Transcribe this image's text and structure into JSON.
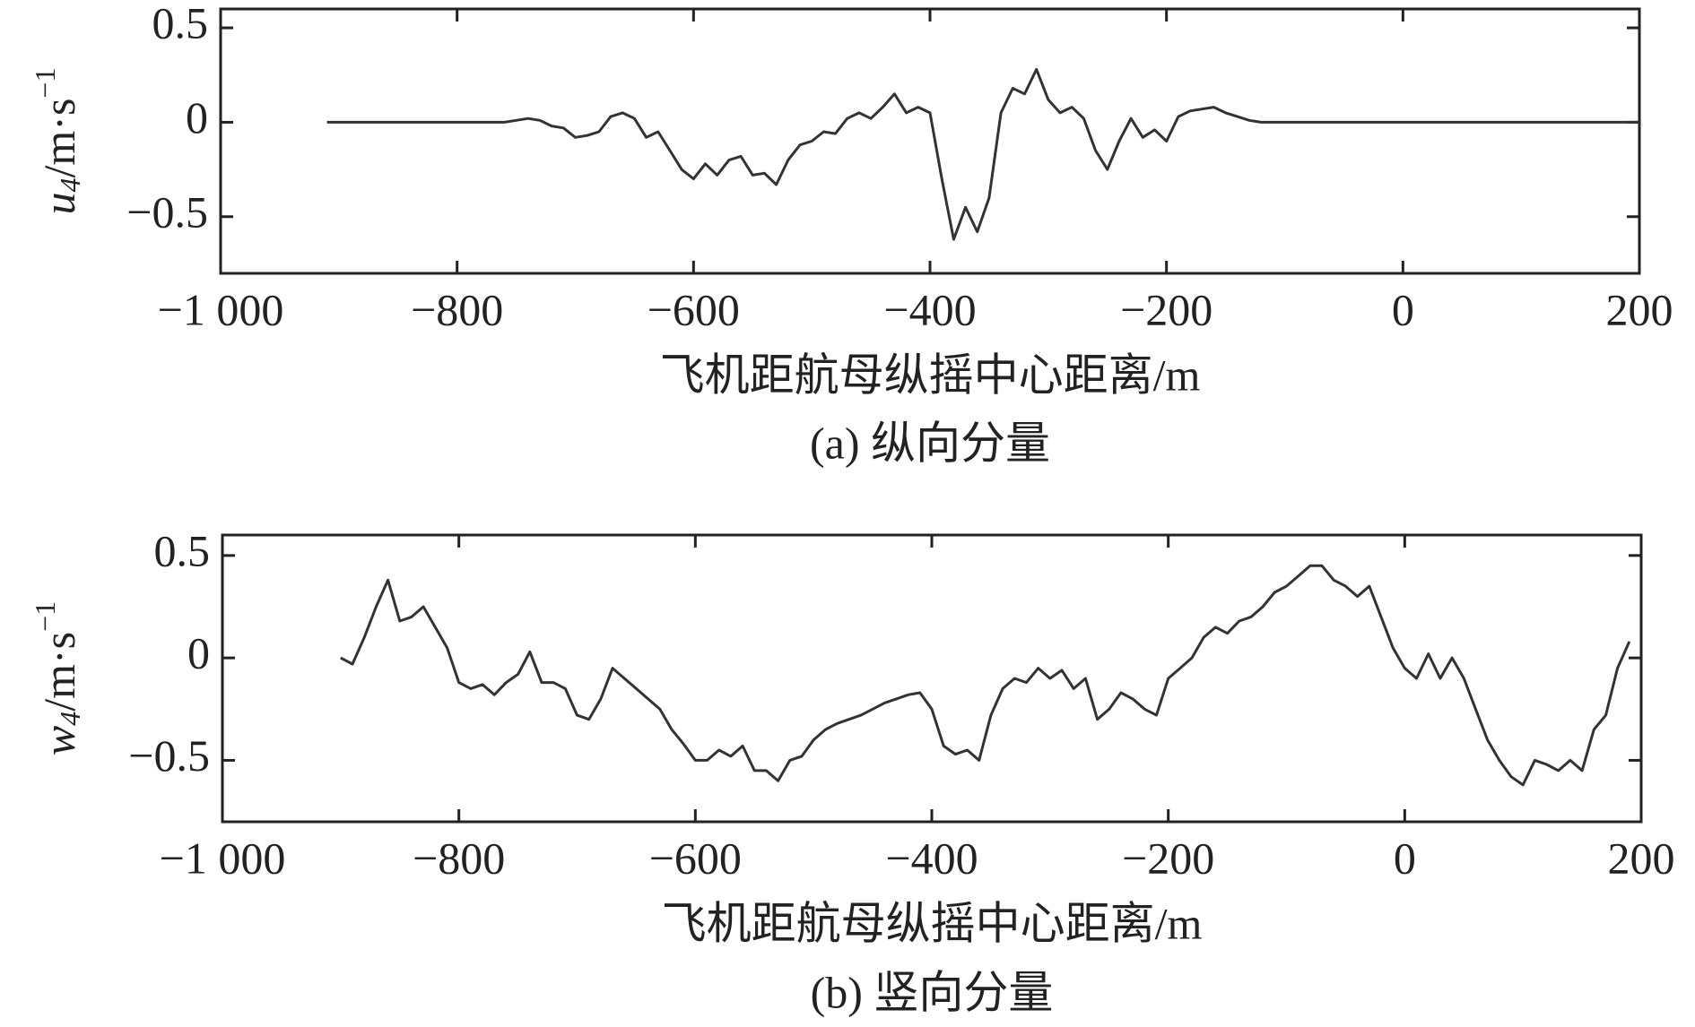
{
  "chart_data": [
    {
      "type": "line",
      "ylabel": {
        "symbol": "u",
        "subscript": "4",
        "unit": "/m·s",
        "exponent": "−1"
      },
      "xlabel": "飞机距航母纵摇中心距离/m",
      "caption": "(a) 纵向分量",
      "xlim": [
        -1000,
        200
      ],
      "ylim": [
        -0.8,
        0.6
      ],
      "xticks": [
        {
          "value": -1000,
          "label": "−1 000"
        },
        {
          "value": -800,
          "label": "−800"
        },
        {
          "value": -600,
          "label": "−600"
        },
        {
          "value": -400,
          "label": "−400"
        },
        {
          "value": -200,
          "label": "−200"
        },
        0,
        200
      ],
      "yticks": [
        {
          "value": -0.5,
          "label": "−0.5"
        },
        0,
        0.5
      ],
      "color": "#333333",
      "x": [
        -910,
        -900,
        -890,
        -880,
        -870,
        -860,
        -850,
        -840,
        -830,
        -820,
        -810,
        -800,
        -790,
        -780,
        -770,
        -760,
        -750,
        -740,
        -730,
        -720,
        -710,
        -700,
        -690,
        -680,
        -670,
        -660,
        -650,
        -640,
        -630,
        -620,
        -610,
        -600,
        -590,
        -580,
        -570,
        -560,
        -550,
        -540,
        -530,
        -520,
        -510,
        -500,
        -490,
        -480,
        -470,
        -460,
        -450,
        -440,
        -430,
        -420,
        -410,
        -400,
        -390,
        -380,
        -370,
        -360,
        -350,
        -340,
        -330,
        -320,
        -310,
        -300,
        -290,
        -280,
        -270,
        -260,
        -250,
        -240,
        -230,
        -220,
        -210,
        -200,
        -190,
        -180,
        -170,
        -160,
        -150,
        -140,
        -130,
        -120,
        -110,
        -100,
        -90,
        -80,
        -70,
        -60,
        -50,
        -40,
        -30,
        -20,
        -10,
        0,
        10,
        20,
        30,
        40,
        50,
        60,
        70,
        80,
        90,
        100,
        110,
        120,
        130,
        140,
        150,
        160,
        170,
        180,
        190,
        200
      ],
      "values": [
        0,
        0,
        0,
        0,
        0,
        0,
        0,
        0,
        0,
        0,
        0,
        0,
        0,
        0,
        0,
        0,
        0.01,
        0.02,
        0.01,
        -0.02,
        -0.03,
        -0.08,
        -0.07,
        -0.05,
        0.03,
        0.05,
        0.02,
        -0.08,
        -0.05,
        -0.15,
        -0.25,
        -0.3,
        -0.22,
        -0.28,
        -0.2,
        -0.18,
        -0.28,
        -0.27,
        -0.33,
        -0.2,
        -0.12,
        -0.1,
        -0.05,
        -0.06,
        0.02,
        0.05,
        0.02,
        0.08,
        0.15,
        0.05,
        0.08,
        0.05,
        -0.3,
        -0.62,
        -0.45,
        -0.58,
        -0.4,
        0.05,
        0.18,
        0.15,
        0.28,
        0.12,
        0.05,
        0.08,
        0.02,
        -0.15,
        -0.25,
        -0.1,
        0.02,
        -0.08,
        -0.04,
        -0.1,
        0.03,
        0.06,
        0.07,
        0.08,
        0.05,
        0.03,
        0.01,
        0,
        0,
        0,
        0,
        0,
        0,
        0,
        0,
        0,
        0,
        0,
        0,
        0,
        0,
        0,
        0,
        0,
        0,
        0,
        0,
        0,
        0,
        0,
        0,
        0,
        0,
        0,
        0,
        0,
        0,
        0,
        0,
        0
      ]
    },
    {
      "type": "line",
      "ylabel": {
        "symbol": "w",
        "subscript": "4",
        "unit": "/m·s",
        "exponent": "−1"
      },
      "xlabel": "飞机距航母纵摇中心距离/m",
      "caption": "(b) 竖向分量",
      "xlim": [
        -1000,
        200
      ],
      "ylim": [
        -0.8,
        0.6
      ],
      "xticks": [
        {
          "value": -1000,
          "label": "−1 000"
        },
        {
          "value": -800,
          "label": "−800"
        },
        {
          "value": -600,
          "label": "−600"
        },
        {
          "value": -400,
          "label": "−400"
        },
        {
          "value": -200,
          "label": "−200"
        },
        0,
        200
      ],
      "yticks": [
        {
          "value": -0.5,
          "label": "−0.5"
        },
        0,
        0.5
      ],
      "color": "#333333",
      "x": [
        -900,
        -890,
        -880,
        -870,
        -860,
        -850,
        -840,
        -830,
        -820,
        -810,
        -800,
        -790,
        -780,
        -770,
        -760,
        -750,
        -740,
        -730,
        -720,
        -710,
        -700,
        -690,
        -680,
        -670,
        -660,
        -650,
        -640,
        -630,
        -620,
        -610,
        -600,
        -590,
        -580,
        -570,
        -560,
        -550,
        -540,
        -530,
        -520,
        -510,
        -500,
        -490,
        -480,
        -470,
        -460,
        -450,
        -440,
        -430,
        -420,
        -410,
        -400,
        -390,
        -380,
        -370,
        -360,
        -350,
        -340,
        -330,
        -320,
        -310,
        -300,
        -290,
        -280,
        -270,
        -260,
        -250,
        -240,
        -230,
        -220,
        -210,
        -200,
        -190,
        -180,
        -170,
        -160,
        -150,
        -140,
        -130,
        -120,
        -110,
        -100,
        -90,
        -80,
        -70,
        -60,
        -50,
        -40,
        -30,
        -20,
        -10,
        0,
        10,
        20,
        30,
        40,
        50,
        60,
        70,
        80,
        90,
        100,
        110,
        120,
        130,
        140,
        150,
        160,
        170,
        180,
        190
      ],
      "values": [
        0,
        -0.03,
        0.1,
        0.25,
        0.38,
        0.18,
        0.2,
        0.25,
        0.15,
        0.05,
        -0.12,
        -0.15,
        -0.13,
        -0.18,
        -0.12,
        -0.08,
        0.03,
        -0.12,
        -0.12,
        -0.15,
        -0.28,
        -0.3,
        -0.2,
        -0.05,
        -0.1,
        -0.15,
        -0.2,
        -0.25,
        -0.35,
        -0.42,
        -0.5,
        -0.5,
        -0.45,
        -0.48,
        -0.43,
        -0.55,
        -0.55,
        -0.6,
        -0.5,
        -0.48,
        -0.4,
        -0.35,
        -0.32,
        -0.3,
        -0.28,
        -0.25,
        -0.22,
        -0.2,
        -0.18,
        -0.17,
        -0.25,
        -0.43,
        -0.47,
        -0.45,
        -0.5,
        -0.28,
        -0.15,
        -0.1,
        -0.12,
        -0.05,
        -0.1,
        -0.06,
        -0.15,
        -0.1,
        -0.3,
        -0.25,
        -0.17,
        -0.2,
        -0.25,
        -0.28,
        -0.1,
        -0.05,
        0,
        0.1,
        0.15,
        0.12,
        0.18,
        0.2,
        0.25,
        0.32,
        0.35,
        0.4,
        0.45,
        0.45,
        0.38,
        0.35,
        0.3,
        0.35,
        0.2,
        0.05,
        -0.05,
        -0.1,
        0.02,
        -0.1,
        0,
        -0.1,
        -0.25,
        -0.4,
        -0.5,
        -0.58,
        -0.62,
        -0.5,
        -0.52,
        -0.55,
        -0.5,
        -0.55,
        -0.35,
        -0.28,
        -0.05,
        0.08
      ]
    }
  ]
}
